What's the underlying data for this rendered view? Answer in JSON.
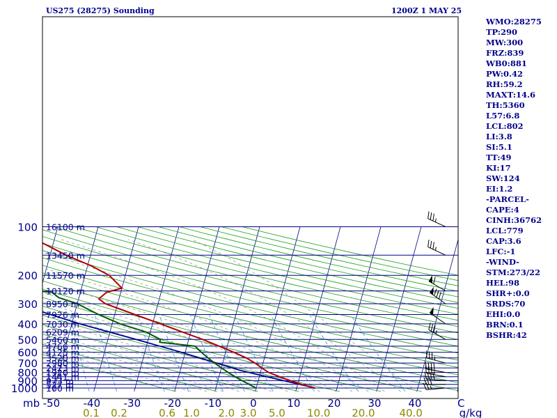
{
  "header": {
    "station": "US275 (28275) Sounding",
    "time": "1200Z  1 MAY 25"
  },
  "indices": [
    "WMO:28275",
    "TP:290",
    "MW:300",
    "FRZ:839",
    "WB0:881",
    "PW:0.42",
    "RH:59.2",
    "MAXT:14.6",
    "TH:5360",
    "L57:6.8",
    "LCL:802",
    "LI:3.8",
    "SI:5.1",
    "TT:49",
    "KI:17",
    "SW:124",
    "EI:1.2",
    "-PARCEL-",
    "CAPE:4",
    "CINH:36762",
    "LCL:779",
    "CAP:3.6",
    "LFC:-1",
    "-WIND-",
    "STM:273/22",
    "HEL:98",
    "SHR+:0.0",
    "SRDS:70",
    "EHI:0.0",
    "BRN:0.1",
    "BSHR:42"
  ],
  "colors": {
    "background": "#ffffff",
    "frame": "#000000",
    "isobar": "#00008b",
    "isotherm": "#00008b",
    "dry_adiabat": "#1a9e1a",
    "moist_adiabat": "#999999",
    "mixing_ratio": "#3b9fe0",
    "temperature": "#b00000",
    "dewpoint": "#005a00",
    "parcel": "#00008b",
    "label": "#00008b",
    "wb_label": "#8b8b00",
    "wind": "#000000"
  },
  "chart_data": {
    "type": "skew-t log-p sounding",
    "pressure_label": "mb",
    "temperature_unit": "C",
    "mixing_ratio_unit": "g/kg",
    "pressure_ticks": [
      100,
      200,
      300,
      400,
      500,
      600,
      700,
      800,
      900,
      1000
    ],
    "temperature_ticks": [
      -50,
      -40,
      -30,
      -20,
      -10,
      0,
      10,
      20,
      30,
      40
    ],
    "mixing_ratio_ticks": [
      "0.1",
      "0.2",
      "0.6",
      "1.0",
      "2.0",
      "3.0",
      "5.0",
      "10.0",
      "20.0",
      "40.0"
    ],
    "height_levels": [
      {
        "p": 100,
        "label": "16100 m"
      },
      {
        "p": 150,
        "label": "13450 m"
      },
      {
        "p": 200,
        "label": "11570 m"
      },
      {
        "p": 250,
        "label": "10120 m"
      },
      {
        "p": 300,
        "label": "8950 m"
      },
      {
        "p": 350,
        "label": "7926 m"
      },
      {
        "p": 400,
        "label": "7030 m"
      },
      {
        "p": 450,
        "label": "6209 m"
      },
      {
        "p": 500,
        "label": "5460 m"
      },
      {
        "p": 550,
        "label": "4766 m"
      },
      {
        "p": 600,
        "label": "4125 m"
      },
      {
        "p": 650,
        "label": "3520 m"
      },
      {
        "p": 700,
        "label": "2960 m"
      },
      {
        "p": 750,
        "label": "2423 m"
      },
      {
        "p": 800,
        "label": "1920 m"
      },
      {
        "p": 850,
        "label": "1441 m"
      },
      {
        "p": 900,
        "label": "973 m"
      },
      {
        "p": 950,
        "label": "527 m"
      },
      {
        "p": 1000,
        "label": "100 m"
      }
    ],
    "temperature_profile": [
      {
        "p": 1000,
        "t": 14.6
      },
      {
        "p": 950,
        "t": 11
      },
      {
        "p": 900,
        "t": 8
      },
      {
        "p": 850,
        "t": 5
      },
      {
        "p": 800,
        "t": 2
      },
      {
        "p": 750,
        "t": 0
      },
      {
        "p": 700,
        "t": -2
      },
      {
        "p": 650,
        "t": -4.5
      },
      {
        "p": 600,
        "t": -8
      },
      {
        "p": 550,
        "t": -12
      },
      {
        "p": 500,
        "t": -16.5
      },
      {
        "p": 450,
        "t": -22
      },
      {
        "p": 400,
        "t": -28
      },
      {
        "p": 350,
        "t": -35
      },
      {
        "p": 300,
        "t": -43
      },
      {
        "p": 280,
        "t": -45
      },
      {
        "p": 255,
        "t": -43.5
      },
      {
        "p": 240,
        "t": -40
      },
      {
        "p": 200,
        "t": -44
      },
      {
        "p": 175,
        "t": -49
      },
      {
        "p": 150,
        "t": -56
      },
      {
        "p": 125,
        "t": -63
      },
      {
        "p": 100,
        "t": -73
      }
    ],
    "dewpoint_profile": [
      {
        "p": 1000,
        "t": 0
      },
      {
        "p": 975,
        "t": -1
      },
      {
        "p": 950,
        "t": -2
      },
      {
        "p": 900,
        "t": -4
      },
      {
        "p": 850,
        "t": -6
      },
      {
        "p": 800,
        "t": -8
      },
      {
        "p": 750,
        "t": -10
      },
      {
        "p": 700,
        "t": -12
      },
      {
        "p": 650,
        "t": -14
      },
      {
        "p": 600,
        "t": -16
      },
      {
        "p": 550,
        "t": -18
      },
      {
        "p": 520,
        "t": -27
      },
      {
        "p": 500,
        "t": -27
      },
      {
        "p": 450,
        "t": -31
      },
      {
        "p": 400,
        "t": -38
      },
      {
        "p": 350,
        "t": -44
      },
      {
        "p": 300,
        "t": -50
      },
      {
        "p": 275,
        "t": -55
      },
      {
        "p": 255,
        "t": -57
      },
      {
        "p": 248,
        "t": -62
      },
      {
        "p": 240,
        "t": -63
      },
      {
        "p": 220,
        "t": -63
      },
      {
        "p": 200,
        "t": -63
      },
      {
        "p": 175,
        "t": -64
      },
      {
        "p": 150,
        "t": -70
      },
      {
        "p": 140,
        "t": -74
      },
      {
        "p": 120,
        "t": -78
      },
      {
        "p": 100,
        "t": -81
      }
    ],
    "parcel_profile": [
      {
        "p": 1000,
        "t": 14.6
      },
      {
        "p": 779,
        "t": -5
      },
      {
        "p": 700,
        "t": -11.5
      },
      {
        "p": 600,
        "t": -21
      },
      {
        "p": 500,
        "t": -33
      },
      {
        "p": 400,
        "t": -48
      },
      {
        "p": 300,
        "t": -65
      },
      {
        "p": 200,
        "t": -87
      },
      {
        "p": 150,
        "t": -98
      },
      {
        "p": 100,
        "t": -113
      }
    ],
    "wind_barbs": [
      {
        "p": 1000,
        "dir": 265,
        "spd": 25
      },
      {
        "p": 950,
        "dir": 270,
        "spd": 30
      },
      {
        "p": 900,
        "dir": 275,
        "spd": 40
      },
      {
        "p": 850,
        "dir": 280,
        "spd": 35
      },
      {
        "p": 800,
        "dir": 280,
        "spd": 40
      },
      {
        "p": 700,
        "dir": 285,
        "spd": 35
      },
      {
        "p": 500,
        "dir": 300,
        "spd": 35
      },
      {
        "p": 400,
        "dir": 305,
        "spd": 50
      },
      {
        "p": 300,
        "dir": 305,
        "spd": 80
      },
      {
        "p": 250,
        "dir": 300,
        "spd": 60
      },
      {
        "p": 150,
        "dir": 295,
        "spd": 35
      },
      {
        "p": 100,
        "dir": 295,
        "spd": 35
      }
    ]
  }
}
